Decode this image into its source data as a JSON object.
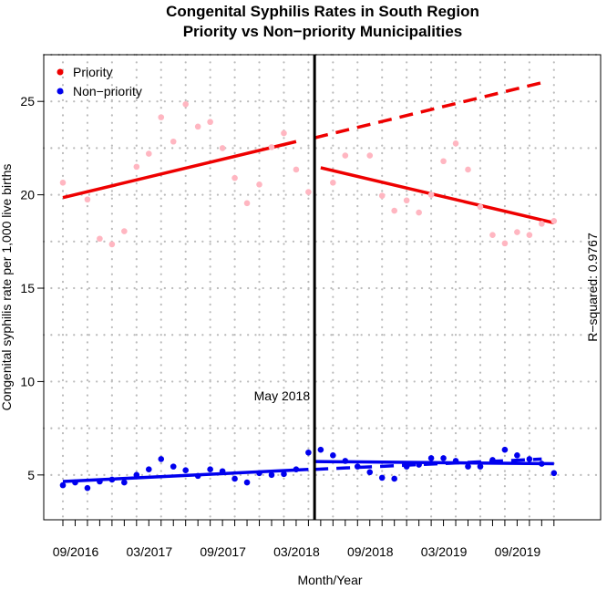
{
  "chart_data": {
    "type": "scatter",
    "title": "Congenital Syphilis Rates in South Region",
    "subtitle": "Priority vs Non−priority Municipalities",
    "xlabel": "Month/Year",
    "ylabel": "Congenital syphilis rate per 1,000 live births",
    "ylim": [
      2.6,
      27.5
    ],
    "yticks": [
      5,
      10,
      15,
      20,
      25
    ],
    "ytick_labels": [
      "5",
      "10",
      "15",
      "20",
      "25"
    ],
    "months": [
      "09/2016",
      "10/2016",
      "11/2016",
      "12/2016",
      "01/2017",
      "02/2017",
      "03/2017",
      "04/2017",
      "05/2017",
      "06/2017",
      "07/2017",
      "08/2017",
      "09/2017",
      "10/2017",
      "11/2017",
      "12/2017",
      "01/2018",
      "02/2018",
      "03/2018",
      "04/2018",
      "05/2018",
      "06/2018",
      "07/2018",
      "08/2018",
      "09/2018",
      "10/2018",
      "11/2018",
      "12/2018",
      "01/2019",
      "02/2019",
      "03/2019",
      "04/2019",
      "05/2019",
      "06/2019",
      "07/2019",
      "08/2019",
      "09/2019",
      "10/2019",
      "11/2019",
      "12/2019",
      "01/2020"
    ],
    "xtick_labels": [
      "09/2016",
      "03/2017",
      "09/2017",
      "03/2018",
      "09/2018",
      "03/2019",
      "09/2019"
    ],
    "intervention_index": 20.5,
    "intervention_label": "May 2018",
    "r_squared_label": "R−squared: 0.9767",
    "legend": [
      {
        "name": "Priority",
        "color": "#ee0000"
      },
      {
        "name": "Non−priority",
        "color": "#0000ee"
      }
    ],
    "series": [
      {
        "name": "Priority",
        "point_color": "#ffb6c1",
        "line_color": "#ee0000",
        "points": [
          [
            0,
            20.65
          ],
          [
            2,
            19.75
          ],
          [
            3,
            17.65
          ],
          [
            4,
            17.35
          ],
          [
            5,
            18.05
          ],
          [
            6,
            21.5
          ],
          [
            7,
            22.2
          ],
          [
            8,
            24.15
          ],
          [
            9,
            22.85
          ],
          [
            10,
            24.85
          ],
          [
            11,
            23.65
          ],
          [
            12,
            23.9
          ],
          [
            13,
            22.5
          ],
          [
            14,
            20.9
          ],
          [
            15,
            19.55
          ],
          [
            16,
            20.55
          ],
          [
            17,
            22.55
          ],
          [
            18,
            23.3
          ],
          [
            19,
            21.35
          ],
          [
            20,
            20.15
          ],
          [
            22,
            20.65
          ],
          [
            23,
            22.1
          ],
          [
            25,
            22.1
          ],
          [
            26,
            19.95
          ],
          [
            27,
            19.15
          ],
          [
            28,
            19.7
          ],
          [
            29,
            19.05
          ],
          [
            30,
            20.0
          ],
          [
            31,
            21.8
          ],
          [
            32,
            22.75
          ],
          [
            33,
            21.35
          ],
          [
            34,
            19.35
          ],
          [
            35,
            17.85
          ],
          [
            36,
            17.4
          ],
          [
            37,
            18.0
          ],
          [
            38,
            17.85
          ],
          [
            39,
            18.45
          ],
          [
            40,
            18.6
          ]
        ],
        "trend_pre": {
          "from": [
            0,
            19.85
          ],
          "to": [
            19,
            22.85
          ]
        },
        "counterfactual": {
          "from": [
            20.5,
            23.05
          ],
          "to": [
            39,
            26.0
          ]
        },
        "trend_post": {
          "from": [
            21,
            21.45
          ],
          "to": [
            40,
            18.5
          ]
        }
      },
      {
        "name": "Non−priority",
        "point_color": "#0000ee",
        "line_color": "#0000ee",
        "points": [
          [
            0,
            4.45
          ],
          [
            1,
            4.6
          ],
          [
            2,
            4.3
          ],
          [
            3,
            4.65
          ],
          [
            4,
            4.75
          ],
          [
            5,
            4.6
          ],
          [
            6,
            5.0
          ],
          [
            7,
            5.3
          ],
          [
            8,
            5.85
          ],
          [
            9,
            5.45
          ],
          [
            10,
            5.25
          ],
          [
            11,
            4.95
          ],
          [
            12,
            5.3
          ],
          [
            13,
            5.2
          ],
          [
            14,
            4.8
          ],
          [
            15,
            4.6
          ],
          [
            16,
            5.1
          ],
          [
            17,
            5.0
          ],
          [
            18,
            5.05
          ],
          [
            19,
            5.3
          ],
          [
            20,
            6.2
          ],
          [
            21,
            6.35
          ],
          [
            22,
            6.05
          ],
          [
            23,
            5.75
          ],
          [
            24,
            5.45
          ],
          [
            25,
            5.15
          ],
          [
            26,
            4.85
          ],
          [
            27,
            4.8
          ],
          [
            28,
            5.45
          ],
          [
            29,
            5.55
          ],
          [
            30,
            5.9
          ],
          [
            31,
            5.9
          ],
          [
            32,
            5.75
          ],
          [
            33,
            5.45
          ],
          [
            34,
            5.45
          ],
          [
            35,
            5.8
          ],
          [
            36,
            6.35
          ],
          [
            37,
            6.05
          ],
          [
            38,
            5.85
          ],
          [
            39,
            5.6
          ],
          [
            40,
            5.1
          ]
        ],
        "trend_pre": {
          "from": [
            0,
            4.65
          ],
          "to": [
            20,
            5.3
          ]
        },
        "counterfactual": {
          "from": [
            20.5,
            5.3
          ],
          "to": [
            39,
            5.85
          ]
        },
        "trend_post": {
          "from": [
            20.5,
            5.72
          ],
          "to": [
            40,
            5.6
          ]
        }
      }
    ]
  }
}
